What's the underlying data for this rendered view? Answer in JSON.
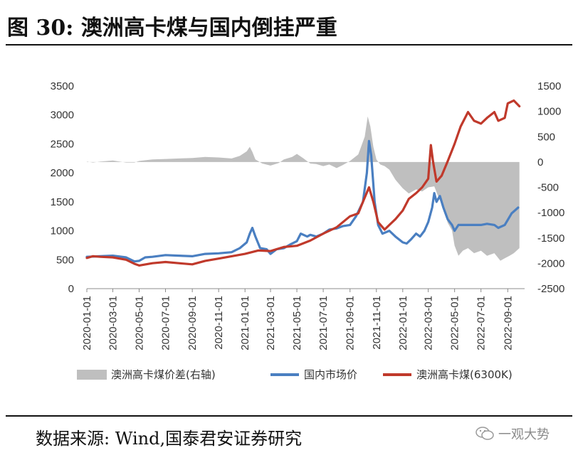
{
  "figure": {
    "title": "图 30:  澳洲高卡煤与国内倒挂严重",
    "source": "数据来源:  Wind,国泰君安证券研究",
    "watermark": "一观大势",
    "watermark_icon": "wechat-icon"
  },
  "chart_data": {
    "type": "line",
    "x_ticks": [
      "2020-01-01",
      "2020-03-01",
      "2020-05-01",
      "2020-07-01",
      "2020-09-01",
      "2020-11-01",
      "2021-01-01",
      "2021-03-01",
      "2021-05-01",
      "2021-07-01",
      "2021-09-01",
      "2021-11-01",
      "2022-01-01",
      "2022-03-01",
      "2022-05-01",
      "2022-07-01",
      "2022-09-01"
    ],
    "xlim": [
      "2020-01-01",
      "2022-10-10"
    ],
    "y_left": {
      "ticks": [
        0,
        500,
        1000,
        1500,
        2000,
        2500,
        3000,
        3500
      ],
      "lim": [
        0,
        3500
      ]
    },
    "y_right": {
      "ticks": [
        -2500,
        -2000,
        -1500,
        -1000,
        -500,
        0,
        500,
        1000,
        1500
      ],
      "lim": [
        -2500,
        1500
      ]
    },
    "series": [
      {
        "name": "澳洲高卡煤价差(右轴)",
        "type": "area",
        "axis": "right",
        "color": "#bfbfbf",
        "points": [
          [
            "2020-01-01",
            10
          ],
          [
            "2020-01-15",
            -10
          ],
          [
            "2020-02-01",
            10
          ],
          [
            "2020-03-01",
            30
          ],
          [
            "2020-04-01",
            -10
          ],
          [
            "2020-04-20",
            -10
          ],
          [
            "2020-05-01",
            20
          ],
          [
            "2020-06-01",
            50
          ],
          [
            "2020-07-01",
            60
          ],
          [
            "2020-08-01",
            70
          ],
          [
            "2020-09-01",
            80
          ],
          [
            "2020-10-01",
            100
          ],
          [
            "2020-11-01",
            90
          ],
          [
            "2020-12-01",
            70
          ],
          [
            "2020-12-20",
            120
          ],
          [
            "2021-01-05",
            210
          ],
          [
            "2021-01-12",
            300
          ],
          [
            "2021-01-18",
            200
          ],
          [
            "2021-01-25",
            50
          ],
          [
            "2021-02-10",
            -30
          ],
          [
            "2021-03-01",
            -70
          ],
          [
            "2021-03-20",
            -20
          ],
          [
            "2021-04-01",
            50
          ],
          [
            "2021-04-20",
            100
          ],
          [
            "2021-05-01",
            160
          ],
          [
            "2021-05-15",
            80
          ],
          [
            "2021-06-01",
            -30
          ],
          [
            "2021-06-15",
            -40
          ],
          [
            "2021-07-01",
            -80
          ],
          [
            "2021-07-15",
            -50
          ],
          [
            "2021-08-01",
            -120
          ],
          [
            "2021-08-15",
            -60
          ],
          [
            "2021-09-01",
            20
          ],
          [
            "2021-09-20",
            150
          ],
          [
            "2021-10-05",
            500
          ],
          [
            "2021-10-12",
            900
          ],
          [
            "2021-10-18",
            700
          ],
          [
            "2021-10-25",
            300
          ],
          [
            "2021-11-01",
            50
          ],
          [
            "2021-11-10",
            -50
          ],
          [
            "2021-11-20",
            -80
          ],
          [
            "2021-12-01",
            -150
          ],
          [
            "2021-12-15",
            -350
          ],
          [
            "2022-01-01",
            -520
          ],
          [
            "2022-01-15",
            -620
          ],
          [
            "2022-02-01",
            -540
          ],
          [
            "2022-02-15",
            -580
          ],
          [
            "2022-03-01",
            -500
          ],
          [
            "2022-03-15",
            -480
          ],
          [
            "2022-03-25",
            -700
          ],
          [
            "2022-04-05",
            -900
          ],
          [
            "2022-04-15",
            -1200
          ],
          [
            "2022-04-25",
            -1350
          ],
          [
            "2022-05-01",
            -1650
          ],
          [
            "2022-05-10",
            -1850
          ],
          [
            "2022-05-20",
            -1750
          ],
          [
            "2022-06-01",
            -1700
          ],
          [
            "2022-06-15",
            -1800
          ],
          [
            "2022-07-01",
            -1750
          ],
          [
            "2022-07-15",
            -1850
          ],
          [
            "2022-08-01",
            -1800
          ],
          [
            "2022-08-15",
            -1950
          ],
          [
            "2022-08-25",
            -1900
          ],
          [
            "2022-09-05",
            -1850
          ],
          [
            "2022-09-15",
            -1800
          ],
          [
            "2022-09-28",
            -1700
          ]
        ]
      },
      {
        "name": "国内市场价",
        "type": "line",
        "axis": "left",
        "color": "#4a7fc1",
        "points": [
          [
            "2020-01-01",
            550
          ],
          [
            "2020-02-01",
            560
          ],
          [
            "2020-03-01",
            570
          ],
          [
            "2020-04-01",
            540
          ],
          [
            "2020-04-20",
            470
          ],
          [
            "2020-05-01",
            480
          ],
          [
            "2020-05-15",
            540
          ],
          [
            "2020-06-01",
            550
          ],
          [
            "2020-07-01",
            580
          ],
          [
            "2020-08-01",
            570
          ],
          [
            "2020-09-01",
            560
          ],
          [
            "2020-10-01",
            600
          ],
          [
            "2020-11-01",
            610
          ],
          [
            "2020-12-01",
            630
          ],
          [
            "2020-12-20",
            700
          ],
          [
            "2021-01-05",
            800
          ],
          [
            "2021-01-12",
            950
          ],
          [
            "2021-01-18",
            1050
          ],
          [
            "2021-01-25",
            900
          ],
          [
            "2021-02-05",
            700
          ],
          [
            "2021-02-20",
            680
          ],
          [
            "2021-03-01",
            600
          ],
          [
            "2021-03-15",
            680
          ],
          [
            "2021-04-01",
            700
          ],
          [
            "2021-04-15",
            760
          ],
          [
            "2021-05-01",
            820
          ],
          [
            "2021-05-10",
            950
          ],
          [
            "2021-05-25",
            900
          ],
          [
            "2021-06-01",
            930
          ],
          [
            "2021-06-15",
            900
          ],
          [
            "2021-07-01",
            950
          ],
          [
            "2021-07-15",
            1020
          ],
          [
            "2021-08-01",
            1040
          ],
          [
            "2021-08-15",
            1080
          ],
          [
            "2021-09-01",
            1100
          ],
          [
            "2021-09-15",
            1250
          ],
          [
            "2021-10-01",
            1500
          ],
          [
            "2021-10-10",
            2000
          ],
          [
            "2021-10-15",
            2550
          ],
          [
            "2021-10-20",
            2300
          ],
          [
            "2021-10-28",
            1500
          ],
          [
            "2021-11-05",
            1100
          ],
          [
            "2021-11-15",
            950
          ],
          [
            "2021-12-01",
            1000
          ],
          [
            "2021-12-15",
            900
          ],
          [
            "2022-01-01",
            800
          ],
          [
            "2022-01-10",
            780
          ],
          [
            "2022-01-20",
            850
          ],
          [
            "2022-02-01",
            950
          ],
          [
            "2022-02-10",
            900
          ],
          [
            "2022-02-20",
            1000
          ],
          [
            "2022-03-01",
            1150
          ],
          [
            "2022-03-10",
            1400
          ],
          [
            "2022-03-15",
            1650
          ],
          [
            "2022-03-20",
            1500
          ],
          [
            "2022-03-28",
            1600
          ],
          [
            "2022-04-05",
            1400
          ],
          [
            "2022-04-15",
            1200
          ],
          [
            "2022-04-25",
            1100
          ],
          [
            "2022-05-01",
            1000
          ],
          [
            "2022-05-10",
            1100
          ],
          [
            "2022-06-01",
            1100
          ],
          [
            "2022-07-01",
            1100
          ],
          [
            "2022-07-15",
            1120
          ],
          [
            "2022-08-01",
            1100
          ],
          [
            "2022-08-10",
            1050
          ],
          [
            "2022-08-25",
            1100
          ],
          [
            "2022-09-10",
            1300
          ],
          [
            "2022-09-25",
            1400
          ]
        ]
      },
      {
        "name": "澳洲高卡煤(6300K)",
        "type": "line",
        "axis": "left",
        "color": "#c0392b",
        "points": [
          [
            "2020-01-01",
            530
          ],
          [
            "2020-01-15",
            560
          ],
          [
            "2020-02-01",
            550
          ],
          [
            "2020-03-01",
            540
          ],
          [
            "2020-04-01",
            500
          ],
          [
            "2020-04-20",
            430
          ],
          [
            "2020-05-01",
            400
          ],
          [
            "2020-06-01",
            440
          ],
          [
            "2020-07-01",
            460
          ],
          [
            "2020-08-01",
            440
          ],
          [
            "2020-09-01",
            420
          ],
          [
            "2020-10-01",
            480
          ],
          [
            "2020-11-01",
            520
          ],
          [
            "2020-12-01",
            560
          ],
          [
            "2021-01-01",
            600
          ],
          [
            "2021-02-01",
            660
          ],
          [
            "2021-03-01",
            650
          ],
          [
            "2021-04-01",
            720
          ],
          [
            "2021-05-01",
            740
          ],
          [
            "2021-06-01",
            830
          ],
          [
            "2021-07-01",
            950
          ],
          [
            "2021-08-01",
            1060
          ],
          [
            "2021-09-01",
            1250
          ],
          [
            "2021-09-20",
            1300
          ],
          [
            "2021-10-01",
            1500
          ],
          [
            "2021-10-15",
            1750
          ],
          [
            "2021-10-25",
            1500
          ],
          [
            "2021-11-05",
            1150
          ],
          [
            "2021-11-20",
            1020
          ],
          [
            "2021-12-01",
            1100
          ],
          [
            "2021-12-15",
            1200
          ],
          [
            "2022-01-01",
            1350
          ],
          [
            "2022-01-15",
            1550
          ],
          [
            "2022-02-01",
            1650
          ],
          [
            "2022-02-15",
            1750
          ],
          [
            "2022-03-01",
            1900
          ],
          [
            "2022-03-07",
            2480
          ],
          [
            "2022-03-12",
            2200
          ],
          [
            "2022-03-20",
            1850
          ],
          [
            "2022-04-01",
            1950
          ],
          [
            "2022-04-15",
            2200
          ],
          [
            "2022-05-01",
            2500
          ],
          [
            "2022-05-15",
            2800
          ],
          [
            "2022-06-01",
            3050
          ],
          [
            "2022-06-15",
            2900
          ],
          [
            "2022-07-01",
            2850
          ],
          [
            "2022-07-15",
            2950
          ],
          [
            "2022-08-01",
            3050
          ],
          [
            "2022-08-10",
            2900
          ],
          [
            "2022-08-25",
            2950
          ],
          [
            "2022-09-01",
            3200
          ],
          [
            "2022-09-15",
            3250
          ],
          [
            "2022-09-28",
            3150
          ]
        ]
      }
    ]
  }
}
